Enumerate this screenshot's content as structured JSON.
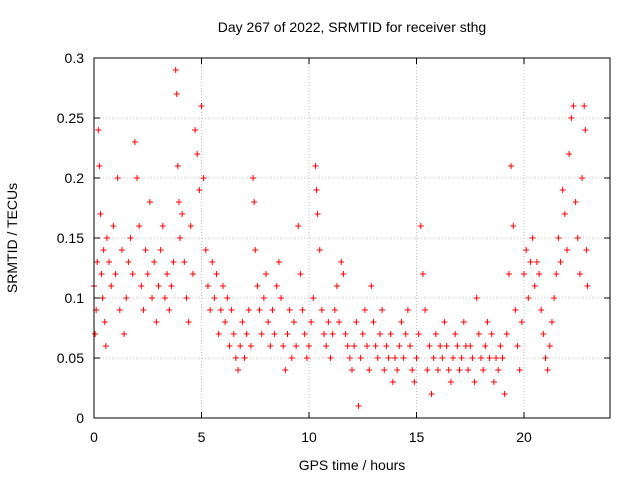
{
  "chart_data": {
    "type": "scatter",
    "title": "Day 267 of 2022, SRMTID for receiver sthg",
    "xlabel": "GPS time / hours",
    "ylabel": "SRMTID / TECUs",
    "xlim": [
      0,
      24
    ],
    "ylim": [
      0,
      0.3
    ],
    "xticks": [
      0,
      5,
      10,
      15,
      20
    ],
    "xtick_labels": [
      "0",
      "5",
      "10",
      "15",
      "20"
    ],
    "yticks": [
      0,
      0.05,
      0.1,
      0.15,
      0.2,
      0.25,
      0.3
    ],
    "ytick_labels": [
      "0",
      "0.05",
      "0.1",
      "0.15",
      "0.2",
      "0.25",
      "0.3"
    ],
    "grid": true,
    "marker": "+",
    "color": "#ff0000",
    "series": [
      {
        "name": "sthg",
        "points": [
          [
            0.0,
            0.11
          ],
          [
            0.05,
            0.07
          ],
          [
            0.1,
            0.09
          ],
          [
            0.15,
            0.13
          ],
          [
            0.2,
            0.24
          ],
          [
            0.25,
            0.21
          ],
          [
            0.3,
            0.17
          ],
          [
            0.35,
            0.12
          ],
          [
            0.4,
            0.1
          ],
          [
            0.45,
            0.14
          ],
          [
            0.5,
            0.08
          ],
          [
            0.55,
            0.06
          ],
          [
            0.6,
            0.15
          ],
          [
            0.7,
            0.13
          ],
          [
            0.8,
            0.11
          ],
          [
            0.9,
            0.16
          ],
          [
            1.0,
            0.12
          ],
          [
            1.1,
            0.2
          ],
          [
            1.2,
            0.09
          ],
          [
            1.3,
            0.14
          ],
          [
            1.4,
            0.07
          ],
          [
            1.5,
            0.1
          ],
          [
            1.6,
            0.13
          ],
          [
            1.7,
            0.15
          ],
          [
            1.8,
            0.12
          ],
          [
            1.9,
            0.23
          ],
          [
            2.0,
            0.2
          ],
          [
            2.1,
            0.16
          ],
          [
            2.2,
            0.11
          ],
          [
            2.3,
            0.09
          ],
          [
            2.4,
            0.14
          ],
          [
            2.5,
            0.12
          ],
          [
            2.6,
            0.18
          ],
          [
            2.7,
            0.1
          ],
          [
            2.8,
            0.13
          ],
          [
            2.9,
            0.08
          ],
          [
            3.0,
            0.11
          ],
          [
            3.1,
            0.14
          ],
          [
            3.2,
            0.16
          ],
          [
            3.3,
            0.1
          ],
          [
            3.4,
            0.12
          ],
          [
            3.5,
            0.09
          ],
          [
            3.6,
            0.11
          ],
          [
            3.7,
            0.13
          ],
          [
            3.8,
            0.29
          ],
          [
            3.85,
            0.27
          ],
          [
            3.9,
            0.21
          ],
          [
            3.95,
            0.18
          ],
          [
            4.0,
            0.15
          ],
          [
            4.1,
            0.17
          ],
          [
            4.2,
            0.13
          ],
          [
            4.3,
            0.1
          ],
          [
            4.4,
            0.08
          ],
          [
            4.5,
            0.16
          ],
          [
            4.6,
            0.12
          ],
          [
            4.7,
            0.24
          ],
          [
            4.8,
            0.22
          ],
          [
            4.9,
            0.19
          ],
          [
            5.0,
            0.26
          ],
          [
            5.1,
            0.2
          ],
          [
            5.2,
            0.14
          ],
          [
            5.3,
            0.11
          ],
          [
            5.4,
            0.09
          ],
          [
            5.5,
            0.13
          ],
          [
            5.6,
            0.1
          ],
          [
            5.7,
            0.12
          ],
          [
            5.8,
            0.07
          ],
          [
            5.9,
            0.09
          ],
          [
            6.0,
            0.11
          ],
          [
            6.1,
            0.08
          ],
          [
            6.2,
            0.1
          ],
          [
            6.3,
            0.06
          ],
          [
            6.4,
            0.09
          ],
          [
            6.5,
            0.07
          ],
          [
            6.6,
            0.05
          ],
          [
            6.7,
            0.04
          ],
          [
            6.8,
            0.06
          ],
          [
            6.9,
            0.08
          ],
          [
            7.0,
            0.05
          ],
          [
            7.1,
            0.07
          ],
          [
            7.2,
            0.09
          ],
          [
            7.3,
            0.06
          ],
          [
            7.4,
            0.2
          ],
          [
            7.45,
            0.18
          ],
          [
            7.5,
            0.14
          ],
          [
            7.6,
            0.11
          ],
          [
            7.7,
            0.09
          ],
          [
            7.8,
            0.07
          ],
          [
            7.9,
            0.1
          ],
          [
            8.0,
            0.12
          ],
          [
            8.1,
            0.08
          ],
          [
            8.2,
            0.06
          ],
          [
            8.3,
            0.09
          ],
          [
            8.4,
            0.07
          ],
          [
            8.5,
            0.11
          ],
          [
            8.6,
            0.13
          ],
          [
            8.7,
            0.1
          ],
          [
            8.8,
            0.06
          ],
          [
            8.9,
            0.04
          ],
          [
            9.0,
            0.07
          ],
          [
            9.1,
            0.09
          ],
          [
            9.2,
            0.05
          ],
          [
            9.3,
            0.08
          ],
          [
            9.4,
            0.06
          ],
          [
            9.5,
            0.16
          ],
          [
            9.6,
            0.12
          ],
          [
            9.7,
            0.09
          ],
          [
            9.8,
            0.07
          ],
          [
            9.9,
            0.05
          ],
          [
            10.0,
            0.06
          ],
          [
            10.1,
            0.08
          ],
          [
            10.2,
            0.1
          ],
          [
            10.3,
            0.21
          ],
          [
            10.35,
            0.19
          ],
          [
            10.4,
            0.17
          ],
          [
            10.5,
            0.14
          ],
          [
            10.6,
            0.09
          ],
          [
            10.7,
            0.07
          ],
          [
            10.8,
            0.06
          ],
          [
            10.9,
            0.08
          ],
          [
            11.0,
            0.05
          ],
          [
            11.1,
            0.07
          ],
          [
            11.2,
            0.09
          ],
          [
            11.3,
            0.11
          ],
          [
            11.4,
            0.08
          ],
          [
            11.5,
            0.13
          ],
          [
            11.6,
            0.12
          ],
          [
            11.7,
            0.07
          ],
          [
            11.8,
            0.06
          ],
          [
            11.9,
            0.05
          ],
          [
            12.0,
            0.04
          ],
          [
            12.1,
            0.06
          ],
          [
            12.2,
            0.08
          ],
          [
            12.3,
            0.01
          ],
          [
            12.4,
            0.05
          ],
          [
            12.5,
            0.07
          ],
          [
            12.6,
            0.09
          ],
          [
            12.7,
            0.06
          ],
          [
            12.8,
            0.04
          ],
          [
            12.9,
            0.11
          ],
          [
            13.0,
            0.08
          ],
          [
            13.1,
            0.06
          ],
          [
            13.2,
            0.05
          ],
          [
            13.3,
            0.07
          ],
          [
            13.4,
            0.09
          ],
          [
            13.5,
            0.04
          ],
          [
            13.6,
            0.06
          ],
          [
            13.7,
            0.05
          ],
          [
            13.8,
            0.07
          ],
          [
            13.9,
            0.03
          ],
          [
            14.0,
            0.05
          ],
          [
            14.1,
            0.04
          ],
          [
            14.2,
            0.06
          ],
          [
            14.3,
            0.08
          ],
          [
            14.4,
            0.05
          ],
          [
            14.5,
            0.07
          ],
          [
            14.6,
            0.09
          ],
          [
            14.7,
            0.06
          ],
          [
            14.8,
            0.04
          ],
          [
            14.9,
            0.03
          ],
          [
            15.0,
            0.05
          ],
          [
            15.1,
            0.07
          ],
          [
            15.2,
            0.16
          ],
          [
            15.3,
            0.12
          ],
          [
            15.4,
            0.09
          ],
          [
            15.5,
            0.04
          ],
          [
            15.6,
            0.06
          ],
          [
            15.7,
            0.02
          ],
          [
            15.8,
            0.05
          ],
          [
            15.9,
            0.07
          ],
          [
            16.0,
            0.04
          ],
          [
            16.1,
            0.06
          ],
          [
            16.2,
            0.05
          ],
          [
            16.3,
            0.08
          ],
          [
            16.4,
            0.06
          ],
          [
            16.5,
            0.04
          ],
          [
            16.6,
            0.03
          ],
          [
            16.7,
            0.05
          ],
          [
            16.8,
            0.07
          ],
          [
            16.9,
            0.06
          ],
          [
            17.0,
            0.04
          ],
          [
            17.1,
            0.05
          ],
          [
            17.2,
            0.08
          ],
          [
            17.3,
            0.06
          ],
          [
            17.4,
            0.04
          ],
          [
            17.5,
            0.06
          ],
          [
            17.6,
            0.05
          ],
          [
            17.7,
            0.03
          ],
          [
            17.8,
            0.1
          ],
          [
            17.9,
            0.07
          ],
          [
            18.0,
            0.05
          ],
          [
            18.1,
            0.04
          ],
          [
            18.2,
            0.06
          ],
          [
            18.3,
            0.08
          ],
          [
            18.4,
            0.05
          ],
          [
            18.5,
            0.07
          ],
          [
            18.6,
            0.03
          ],
          [
            18.7,
            0.05
          ],
          [
            18.8,
            0.04
          ],
          [
            18.9,
            0.06
          ],
          [
            19.0,
            0.05
          ],
          [
            19.1,
            0.02
          ],
          [
            19.2,
            0.07
          ],
          [
            19.3,
            0.12
          ],
          [
            19.4,
            0.21
          ],
          [
            19.5,
            0.16
          ],
          [
            19.6,
            0.09
          ],
          [
            19.7,
            0.06
          ],
          [
            19.8,
            0.04
          ],
          [
            19.9,
            0.08
          ],
          [
            20.0,
            0.12
          ],
          [
            20.1,
            0.14
          ],
          [
            20.2,
            0.1
          ],
          [
            20.3,
            0.13
          ],
          [
            20.4,
            0.15
          ],
          [
            20.5,
            0.11
          ],
          [
            20.6,
            0.13
          ],
          [
            20.7,
            0.12
          ],
          [
            20.8,
            0.09
          ],
          [
            20.9,
            0.07
          ],
          [
            21.0,
            0.05
          ],
          [
            21.1,
            0.04
          ],
          [
            21.2,
            0.06
          ],
          [
            21.3,
            0.08
          ],
          [
            21.4,
            0.1
          ],
          [
            21.5,
            0.12
          ],
          [
            21.6,
            0.15
          ],
          [
            21.7,
            0.13
          ],
          [
            21.8,
            0.19
          ],
          [
            21.9,
            0.17
          ],
          [
            22.0,
            0.14
          ],
          [
            22.1,
            0.22
          ],
          [
            22.2,
            0.25
          ],
          [
            22.3,
            0.26
          ],
          [
            22.4,
            0.18
          ],
          [
            22.5,
            0.15
          ],
          [
            22.6,
            0.12
          ],
          [
            22.7,
            0.2
          ],
          [
            22.8,
            0.26
          ],
          [
            22.85,
            0.24
          ],
          [
            22.9,
            0.14
          ],
          [
            22.95,
            0.11
          ]
        ]
      }
    ]
  }
}
